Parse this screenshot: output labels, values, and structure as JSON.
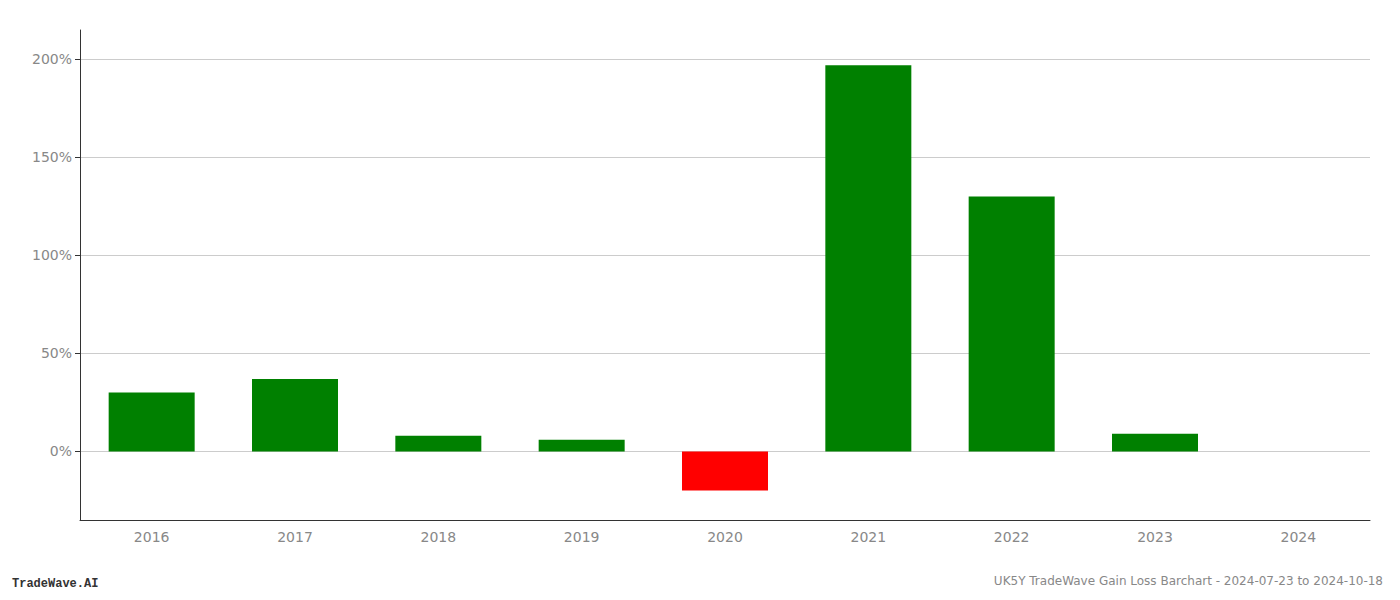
{
  "chart_data": {
    "type": "bar",
    "title": "UK5Y TradeWave Gain Loss Barchart - 2024-07-23 to 2024-10-18",
    "annotations": [
      "TradeWave.AI"
    ],
    "categories": [
      "2016",
      "2017",
      "2018",
      "2019",
      "2020",
      "2021",
      "2022",
      "2023",
      "2024"
    ],
    "values": [
      30.0,
      37.0,
      8.0,
      6.0,
      -20.0,
      197.0,
      130.0,
      9.0,
      0.0
    ],
    "colors": [
      "#008000",
      "#008000",
      "#008000",
      "#008000",
      "#ff0000",
      "#008000",
      "#008000",
      "#008000",
      "#008000"
    ],
    "ylim": [
      -35,
      215
    ],
    "yticks": [
      {
        "value": 0,
        "label": "0%"
      },
      {
        "value": 50,
        "label": "50%"
      },
      {
        "value": 100,
        "label": "100%"
      },
      {
        "value": 150,
        "label": "150%"
      },
      {
        "value": 200,
        "label": "200%"
      }
    ],
    "grid": true
  }
}
